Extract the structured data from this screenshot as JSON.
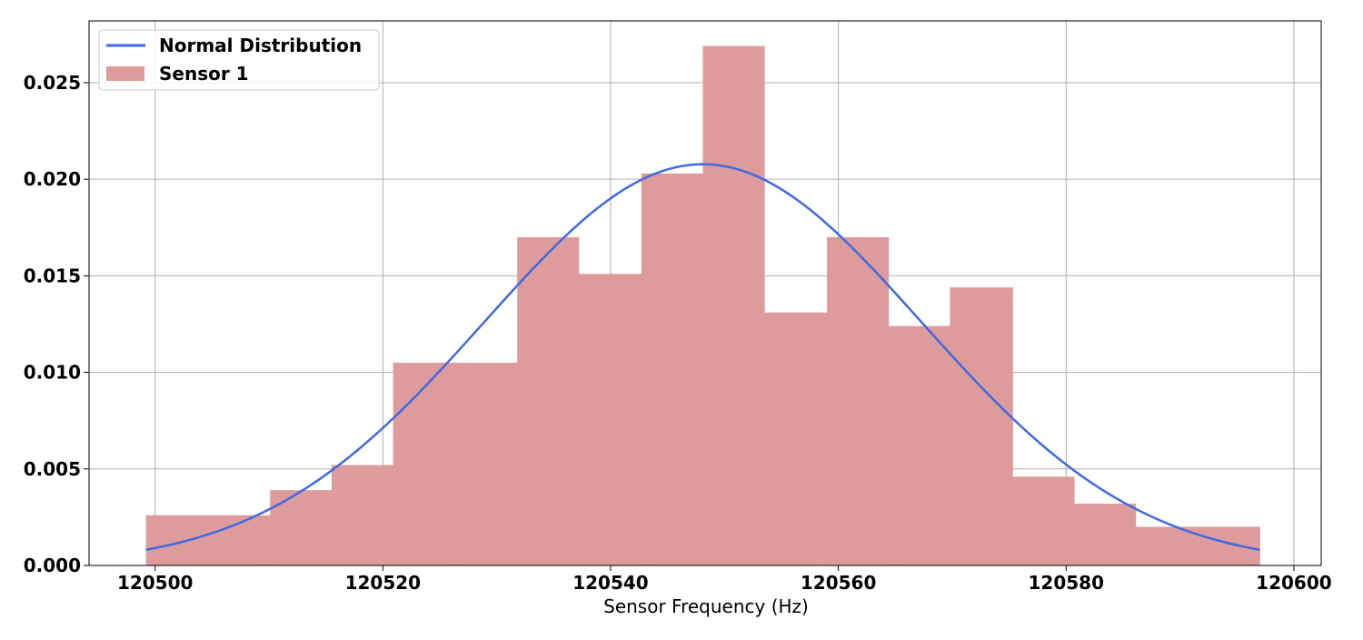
{
  "chart_data": {
    "type": "bar",
    "xlabel": "Sensor Frequency (Hz)",
    "ylabel": "",
    "title": "",
    "xlim": [
      120494.2,
      120602.4
    ],
    "ylim": [
      0.0,
      0.0282
    ],
    "x_ticks": [
      120500,
      120520,
      120540,
      120560,
      120580,
      120600
    ],
    "y_ticks": [
      0.0,
      0.005,
      0.01,
      0.015,
      0.02,
      0.025
    ],
    "x_tick_labels": [
      "120500",
      "120520",
      "120540",
      "120560",
      "120580",
      "120600"
    ],
    "y_tick_labels": [
      "0.000",
      "0.005",
      "0.010",
      "0.015",
      "0.020",
      "0.025"
    ],
    "grid": true,
    "legend_position": "top-left",
    "histogram": {
      "name": "Sensor 1",
      "color": "#dd9b9b",
      "bin_edges": [
        120499.2,
        120504.6,
        120510.1,
        120515.5,
        120520.9,
        120526.4,
        120531.8,
        120537.2,
        120542.7,
        120548.1,
        120553.5,
        120559.0,
        120564.4,
        120569.8,
        120575.3,
        120580.7,
        120586.1,
        120591.6,
        120597.0
      ],
      "values": [
        0.0026,
        0.0026,
        0.0039,
        0.0052,
        0.0105,
        0.0105,
        0.017,
        0.0151,
        0.0203,
        0.0269,
        0.0131,
        0.017,
        0.0124,
        0.0144,
        0.0046,
        0.0032,
        0.002,
        0.002
      ]
    },
    "normal_curve": {
      "name": "Normal Distribution",
      "color": "#4169e1",
      "mean": 120548.1,
      "std": 19.2,
      "x_range": [
        120499.2,
        120597.0
      ]
    }
  }
}
